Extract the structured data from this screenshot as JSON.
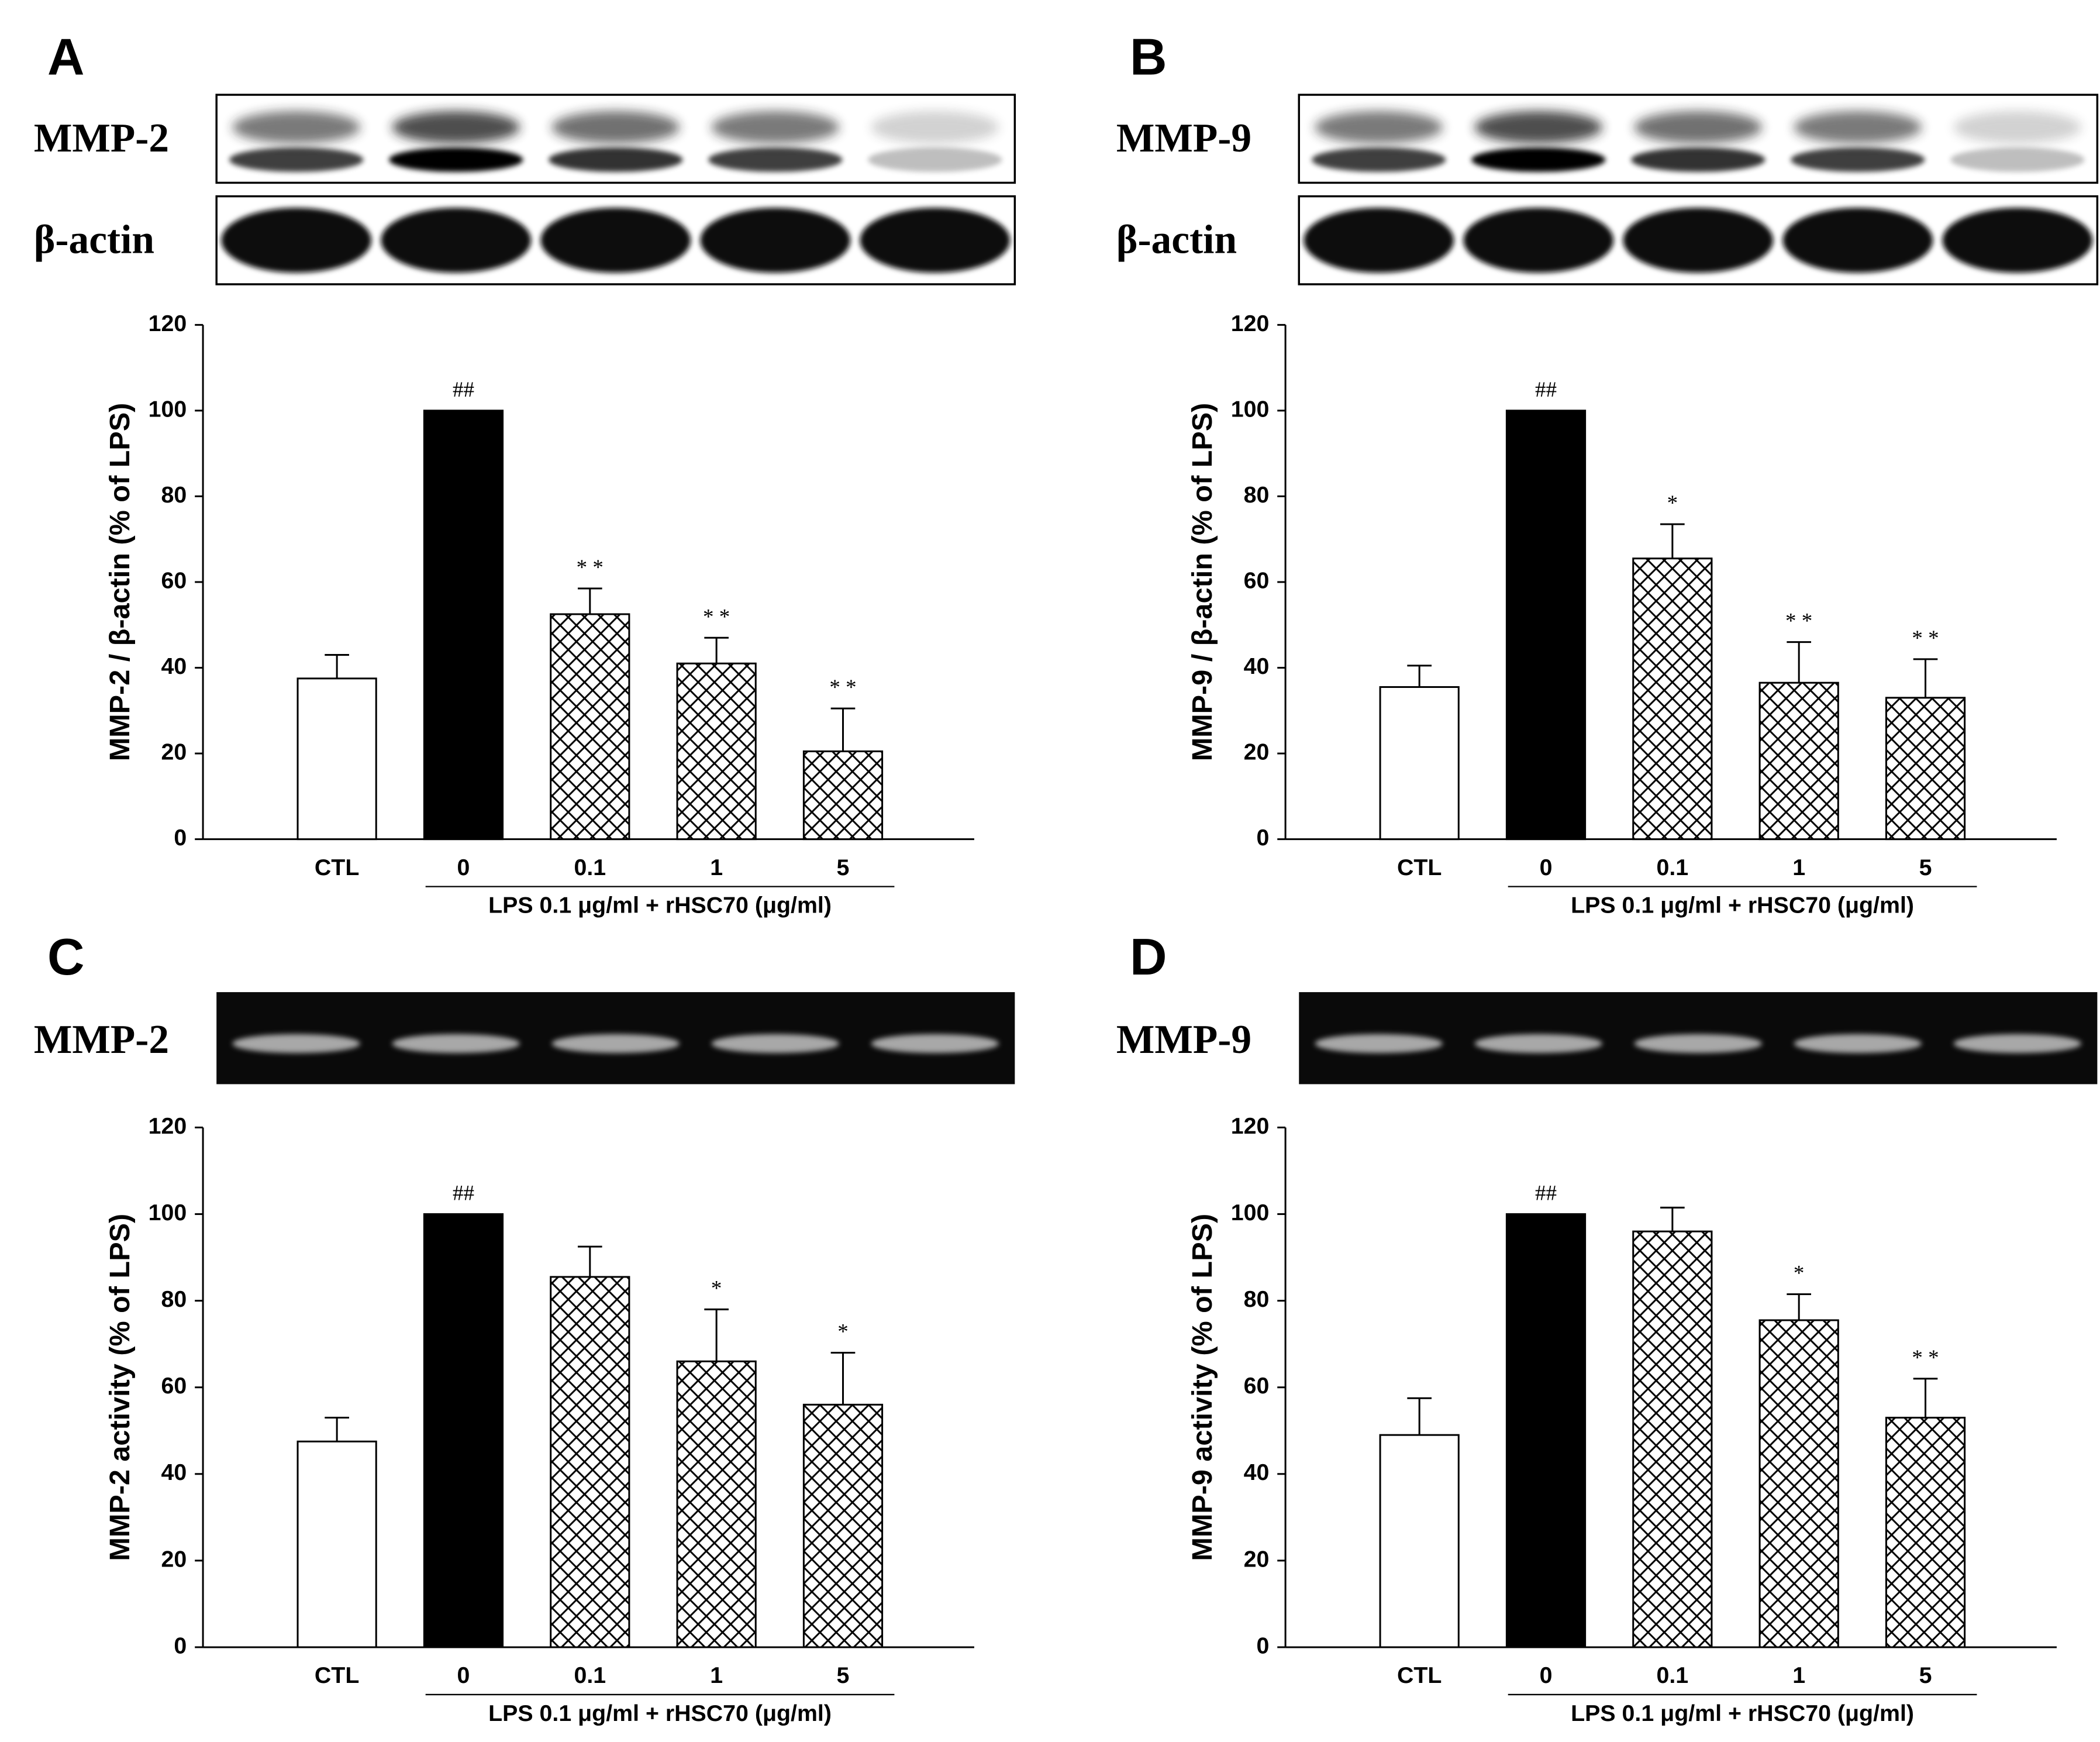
{
  "chart_data": [
    {
      "type": "bar",
      "panel": "A",
      "blots": [
        "MMP-2",
        "β-actin"
      ],
      "y_label": "MMP-2 / β-actin (% of LPS)",
      "x_group_label": "LPS 0.1 μg/ml + rHSC70 (μg/ml)",
      "categories": [
        "CTL",
        "0",
        "0.1",
        "1",
        "5"
      ],
      "values": [
        37.5,
        100,
        52.5,
        41,
        20.5
      ],
      "errors": [
        5.5,
        0,
        6,
        6,
        10
      ],
      "fills": [
        "#ffffff",
        "#000000",
        "hatch",
        "hatch",
        "hatch"
      ],
      "annotations": [
        null,
        "##",
        "* *",
        "* *",
        "* *"
      ],
      "ylim": [
        0,
        120
      ],
      "yticks": [
        0,
        20,
        40,
        60,
        80,
        100,
        120
      ]
    },
    {
      "type": "bar",
      "panel": "B",
      "blots": [
        "MMP-9",
        "β-actin"
      ],
      "y_label": "MMP-9 / β-actin (% of LPS)",
      "x_group_label": "LPS 0.1 μg/ml + rHSC70 (μg/ml)",
      "categories": [
        "CTL",
        "0",
        "0.1",
        "1",
        "5"
      ],
      "values": [
        35.5,
        100,
        65.5,
        36.5,
        33
      ],
      "errors": [
        5,
        0,
        8,
        9.5,
        9
      ],
      "fills": [
        "#ffffff",
        "#000000",
        "hatch",
        "hatch",
        "hatch"
      ],
      "annotations": [
        null,
        "##",
        "*",
        "* *",
        "* *"
      ],
      "ylim": [
        0,
        120
      ],
      "yticks": [
        0,
        20,
        40,
        60,
        80,
        100,
        120
      ]
    },
    {
      "type": "bar",
      "panel": "C",
      "blots": [
        "MMP-2"
      ],
      "y_label": "MMP-2 activity (% of LPS)",
      "x_group_label": "LPS 0.1 μg/ml + rHSC70 (μg/ml)",
      "categories": [
        "CTL",
        "0",
        "0.1",
        "1",
        "5"
      ],
      "values": [
        47.5,
        100,
        85.5,
        66,
        56
      ],
      "errors": [
        5.5,
        0,
        7,
        12,
        12
      ],
      "fills": [
        "#ffffff",
        "#000000",
        "hatch",
        "hatch",
        "hatch"
      ],
      "annotations": [
        null,
        "##",
        null,
        "*",
        "*"
      ],
      "ylim": [
        0,
        120
      ],
      "yticks": [
        0,
        20,
        40,
        60,
        80,
        100,
        120
      ]
    },
    {
      "type": "bar",
      "panel": "D",
      "blots": [
        "MMP-9"
      ],
      "y_label": "MMP-9 activity (% of LPS)",
      "x_group_label": "LPS 0.1 μg/ml + rHSC70 (μg/ml)",
      "categories": [
        "CTL",
        "0",
        "0.1",
        "1",
        "5"
      ],
      "values": [
        49,
        100,
        96,
        75.5,
        53
      ],
      "errors": [
        8.5,
        0,
        5.5,
        6,
        9
      ],
      "fills": [
        "#ffffff",
        "#000000",
        "hatch",
        "hatch",
        "hatch"
      ],
      "annotations": [
        null,
        "##",
        null,
        "*",
        "* *"
      ],
      "ylim": [
        0,
        120
      ],
      "yticks": [
        0,
        20,
        40,
        60,
        80,
        100,
        120
      ]
    }
  ]
}
